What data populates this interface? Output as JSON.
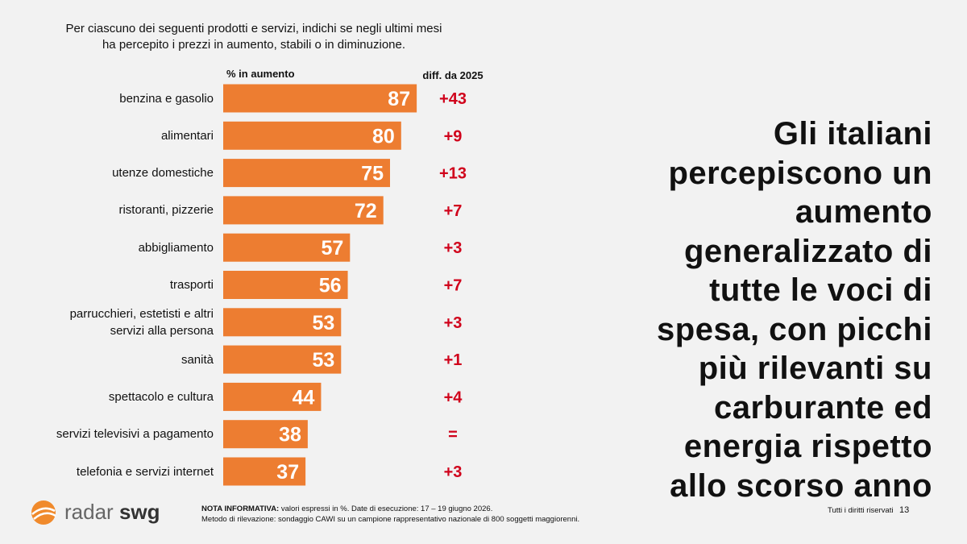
{
  "question": "Per ciascuno dei seguenti prodotti e servizi, indichi se negli ultimi mesi\nha percepito i prezzi in aumento, stabili o in diminuzione.",
  "chart_data": {
    "type": "bar",
    "orientation": "horizontal",
    "value_header": "% in aumento",
    "diff_header": "diff. da 2025",
    "categories": [
      "benzina e gasolio",
      "alimentari",
      "utenze domestiche",
      "ristoranti, pizzerie",
      "abbigliamento",
      "trasporti",
      "parrucchieri, estetisti e altri\nservizi alla persona",
      "sanità",
      "spettacolo e cultura",
      "servizi televisivi a pagamento",
      "telefonia e servizi internet"
    ],
    "values": [
      87,
      80,
      75,
      72,
      57,
      56,
      53,
      53,
      44,
      38,
      37
    ],
    "diff_labels": [
      "+43",
      "+9",
      "+13",
      "+7",
      "+3",
      "+7",
      "+3",
      "+1",
      "+4",
      "=",
      "+3"
    ],
    "color": "#ed7d31",
    "diff_color": "#d0021b"
  },
  "headline": "Gli italiani\npercepiscono un\naumento\ngeneralizzato di\ntutte le voci di\nspesa, con picchi\npiù rilevanti su\ncarburante ed\nenergia rispetto\nallo scorso anno",
  "footer": {
    "note_label": "NOTA INFORMATIVA:",
    "note_text": "valori espressi in %. Date di esecuzione: 17 – 19 giugno 2026.",
    "note_line2": "Metodo di rilevazione: sondaggio CAWI su un campione rappresentativo nazionale di 800 soggetti maggiorenni.",
    "logo_a": "radar",
    "logo_b": "swg",
    "rights": "Tutti i diritti riservati",
    "page": "13"
  }
}
